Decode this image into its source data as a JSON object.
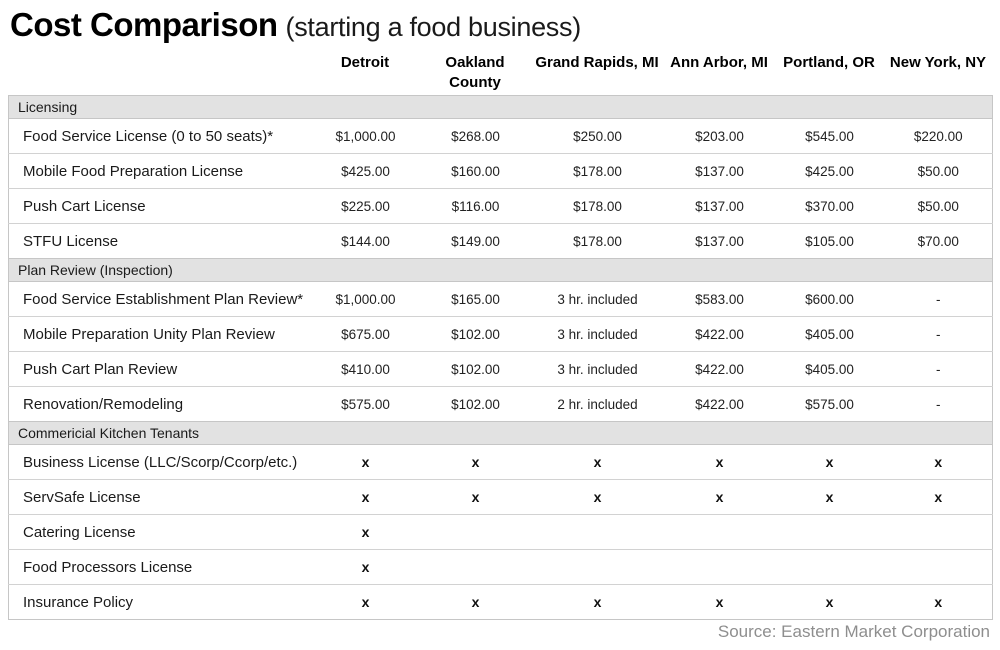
{
  "title": "Cost Comparison",
  "subtitle": "(starting a food business)",
  "source": "Source: Eastern Market Corporation",
  "colors": {
    "section_header_bg": "#e2e2e2",
    "table_border": "#c6c6c6",
    "row_border": "#d2d2d2",
    "text": "#1a1a1a",
    "source_text": "#8e8e8e"
  },
  "chart_data": {
    "type": "table",
    "title": "Cost Comparison (starting a food business)",
    "columns": [
      "Detroit",
      "Oakland County",
      "Grand Rapids, MI",
      "Ann Arbor, MI",
      "Portland, OR",
      "New York, NY"
    ],
    "sections": [
      {
        "header": "Licensing",
        "rows": [
          {
            "label": "Food Service License (0 to 50 seats)*",
            "values": [
              "$1,000.00",
              "$268.00",
              "$250.00",
              "$203.00",
              "$545.00",
              "$220.00"
            ]
          },
          {
            "label": "Mobile Food Preparation License",
            "values": [
              "$425.00",
              "$160.00",
              "$178.00",
              "$137.00",
              "$425.00",
              "$50.00"
            ]
          },
          {
            "label": "Push Cart License",
            "values": [
              "$225.00",
              "$116.00",
              "$178.00",
              "$137.00",
              "$370.00",
              "$50.00"
            ]
          },
          {
            "label": "STFU License",
            "values": [
              "$144.00",
              "$149.00",
              "$178.00",
              "$137.00",
              "$105.00",
              "$70.00"
            ]
          }
        ]
      },
      {
        "header": "Plan Review (Inspection)",
        "rows": [
          {
            "label": "Food Service Establishment Plan Review*",
            "values": [
              "$1,000.00",
              "$165.00",
              "3 hr. included",
              "$583.00",
              "$600.00",
              "-"
            ]
          },
          {
            "label": "Mobile Preparation Unity Plan Review",
            "values": [
              "$675.00",
              "$102.00",
              "3 hr. included",
              "$422.00",
              "$405.00",
              "-"
            ]
          },
          {
            "label": "Push Cart Plan Review",
            "values": [
              "$410.00",
              "$102.00",
              "3 hr. included",
              "$422.00",
              "$405.00",
              "-"
            ]
          },
          {
            "label": "Renovation/Remodeling",
            "values": [
              "$575.00",
              "$102.00",
              "2 hr. included",
              "$422.00",
              "$575.00",
              "-"
            ]
          }
        ]
      },
      {
        "header": "Commericial Kitchen Tenants",
        "rows": [
          {
            "label": "Business License (LLC/Scorp/Ccorp/etc.)",
            "values": [
              "x",
              "x",
              "x",
              "x",
              "x",
              "x"
            ]
          },
          {
            "label": "ServSafe License",
            "values": [
              "x",
              "x",
              "x",
              "x",
              "x",
              "x"
            ]
          },
          {
            "label": "Catering License",
            "values": [
              "x",
              "",
              "",
              "",
              "",
              ""
            ]
          },
          {
            "label": "Food Processors License",
            "values": [
              "x",
              "",
              "",
              "",
              "",
              ""
            ]
          },
          {
            "label": "Insurance Policy",
            "values": [
              "x",
              "x",
              "x",
              "x",
              "x",
              "x"
            ]
          }
        ]
      }
    ]
  }
}
